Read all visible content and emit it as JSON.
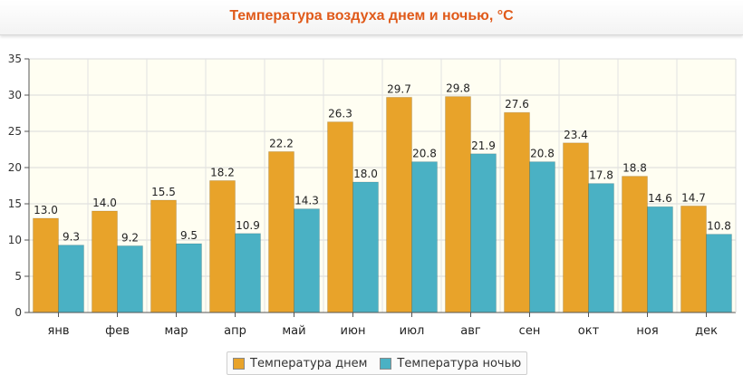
{
  "chart_data": {
    "type": "bar",
    "title": "Температура воздуха днем и ночью, °C",
    "categories": [
      "янв",
      "фев",
      "мар",
      "апр",
      "май",
      "июн",
      "июл",
      "авг",
      "сен",
      "окт",
      "ноя",
      "дек"
    ],
    "series": [
      {
        "name": "Температура днем",
        "color": "#e8a32a",
        "values": [
          13.0,
          14.0,
          15.5,
          18.2,
          22.2,
          26.3,
          29.7,
          29.8,
          27.6,
          23.4,
          18.8,
          14.7
        ]
      },
      {
        "name": "Температура ночью",
        "color": "#4ab1c4",
        "values": [
          9.3,
          9.2,
          9.5,
          10.9,
          14.3,
          18.0,
          20.8,
          21.9,
          20.8,
          17.8,
          14.6,
          10.8
        ]
      }
    ],
    "ylim": [
      0,
      35
    ],
    "yticks": [
      0,
      5,
      10,
      15,
      20,
      25,
      30,
      35
    ],
    "grid": true,
    "legend": "bottom-center"
  }
}
